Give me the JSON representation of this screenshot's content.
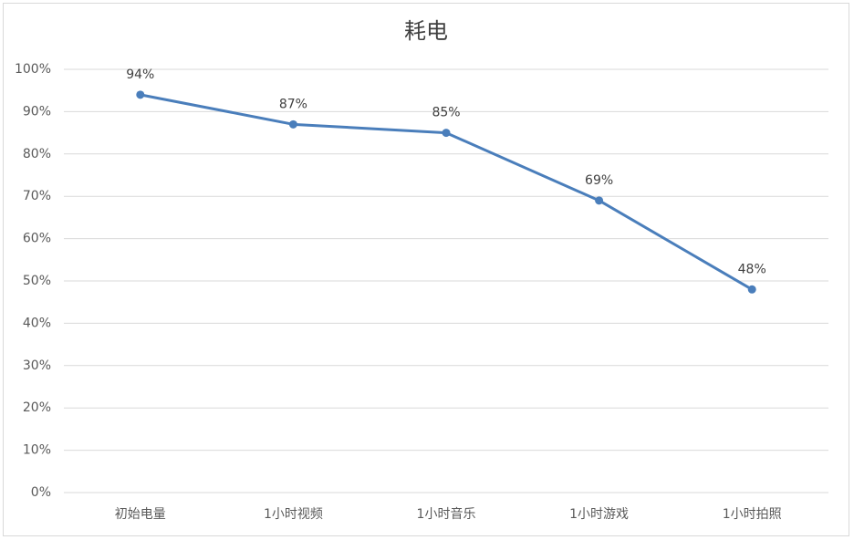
{
  "chart_data": {
    "type": "line",
    "title": "耗电",
    "categories": [
      "初始电量",
      "1小时视频",
      "1小时音乐",
      "1小时游戏",
      "1小时拍照"
    ],
    "series": [
      {
        "name": "耗电",
        "color": "#4a7ebb",
        "values": [
          94,
          87,
          85,
          69,
          48
        ],
        "value_labels": [
          "94%",
          "87%",
          "85%",
          "69%",
          "48%"
        ]
      }
    ],
    "ylim": [
      0,
      100
    ],
    "yticks": [
      {
        "value": 0,
        "label": "0%"
      },
      {
        "value": 10,
        "label": "10%"
      },
      {
        "value": 20,
        "label": "20%"
      },
      {
        "value": 30,
        "label": "30%"
      },
      {
        "value": 40,
        "label": "40%"
      },
      {
        "value": 50,
        "label": "50%"
      },
      {
        "value": 60,
        "label": "60%"
      },
      {
        "value": 70,
        "label": "70%"
      },
      {
        "value": 80,
        "label": "80%"
      },
      {
        "value": 90,
        "label": "90%"
      },
      {
        "value": 100,
        "label": "100%"
      }
    ],
    "grid": true
  }
}
